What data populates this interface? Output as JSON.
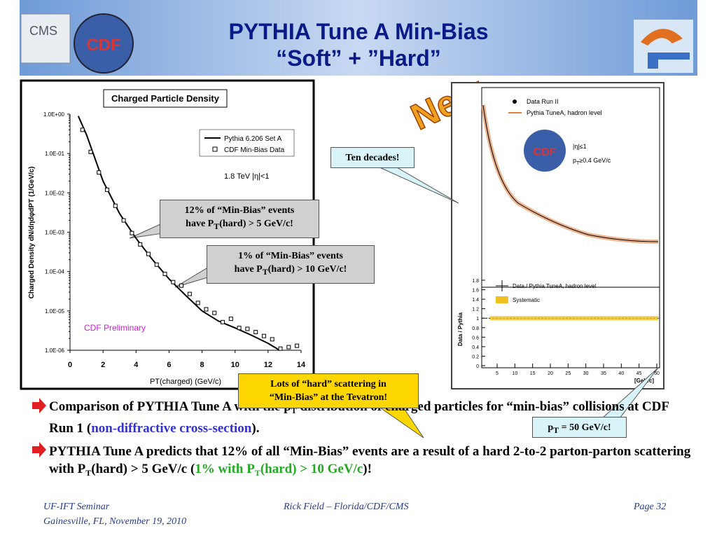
{
  "header": {
    "title_line1": "PYTHIA Tune A Min-Bias",
    "title_line2": "“Soft” + ”Hard”",
    "logo_left": "CMS",
    "logo_cdf": "CDF"
  },
  "new_badge": "New",
  "left_chart": {
    "type": "scatter",
    "title": "Charged Particle Density",
    "xlabel": "PT(charged)  (GeV/c)",
    "ylabel": "Charged Density dN/dηdφdPT (1/GeV/c)",
    "xlim": [
      0,
      14
    ],
    "xticks": [
      0,
      2,
      4,
      6,
      8,
      10,
      12,
      14
    ],
    "ylim": [
      1e-06,
      1
    ],
    "log_y": true,
    "yticks": [
      {
        "value": 1,
        "label": "1.0E+00"
      },
      {
        "value": 0.1,
        "label": "1.0E-01"
      },
      {
        "value": 0.01,
        "label": "1.0E-02"
      },
      {
        "value": 0.001,
        "label": "1.0E-03"
      },
      {
        "value": 0.0001,
        "label": "1.0E-04"
      },
      {
        "value": 1e-05,
        "label": "1.0E-05"
      },
      {
        "value": 1e-06,
        "label": "1.0E-06"
      }
    ],
    "annotations": [
      "1.8 TeV |η|<1",
      "CDF Preliminary"
    ],
    "series": [
      {
        "name": "Pythia 6.206 Set A",
        "color": "#000000",
        "style": "line",
        "x": [
          0.5,
          1,
          2,
          3,
          4,
          5,
          6,
          7,
          8,
          9,
          10,
          11,
          12,
          12.7
        ],
        "values": [
          0.9,
          0.3,
          0.02,
          0.003,
          0.0007,
          0.0002,
          6.5e-05,
          2.5e-05,
          1e-05,
          5.5e-06,
          3.7e-06,
          2.4e-06,
          1.5e-06,
          1e-06
        ]
      },
      {
        "name": "CDF Min-Bias Data",
        "color": "#000000",
        "style": "square",
        "x": [
          0.75,
          1.25,
          1.75,
          2.25,
          2.75,
          3.25,
          3.75,
          4.25,
          4.75,
          5.25,
          5.75,
          6.25,
          6.75,
          7.25,
          7.75,
          8.25,
          8.75,
          9.25,
          9.75,
          10.25,
          10.75,
          11.25,
          11.75,
          12.25,
          12.75,
          13.25,
          13.75
        ],
        "values": [
          0.4,
          0.11,
          0.033,
          0.012,
          0.0047,
          0.002,
          0.00095,
          0.00049,
          0.00028,
          0.00015,
          8.7e-05,
          5.4e-05,
          4.4e-05,
          2.7e-05,
          1.6e-05,
          1.1e-05,
          8.9e-06,
          5.2e-06,
          6.3e-06,
          3.7e-06,
          3.5e-06,
          2.9e-06,
          2.3e-06,
          1.9e-06,
          1.1e-06,
          1.2e-06,
          1.3e-06
        ]
      }
    ]
  },
  "right_chart": {
    "legend": [
      "Data Run II",
      "Pythia TuneA, hadron level"
    ],
    "cuts": [
      "|η|≤1",
      "p",
      "T",
      "≥0.4 GeV/c"
    ],
    "lower_legend": [
      "Data / Pythia TuneA, hadron level",
      "Systematic"
    ],
    "lower_ylabel": "Data / Pythia",
    "lower_yticks": [
      0,
      0.2,
      0.4,
      0.6,
      0.8,
      1,
      1.2,
      1.4,
      1.6,
      1.8
    ],
    "xticks": [
      5,
      10,
      15,
      20,
      25,
      30,
      35,
      40,
      45,
      50
    ],
    "xlabel": "[GeV/c]"
  },
  "callouts": {
    "ten_decades": "Ten decades!",
    "twelve": [
      "12% of “Min-Bias” events",
      "have P",
      "T",
      "(hard) > 5 GeV/c!"
    ],
    "one": [
      "1% of “Min-Bias” events",
      "have P",
      "T",
      "(hard) > 10 GeV/c!"
    ],
    "lots": [
      "Lots of “hard” scattering in",
      "“Min-Bias” at the Tevatron!"
    ],
    "pt50": [
      "p",
      "T",
      " = 50 GeV/c!"
    ]
  },
  "bullets": [
    [
      {
        "text": "Comparison of PYTHIA Tune A with the p",
        "style": ""
      },
      {
        "text": "T",
        "style": "sub"
      },
      {
        "text": " distribution of charged particles for “min-bias” collisions at CDF Run 1 (",
        "style": ""
      },
      {
        "text": "non-diffractive cross-section",
        "style": "blue"
      },
      {
        "text": ").",
        "style": ""
      }
    ],
    [
      {
        "text": "PYTHIA Tune A predicts that 12% of all “Min-Bias” events are a result of a hard 2-to-2 parton-parton scattering with P",
        "style": ""
      },
      {
        "text": "T",
        "style": "sub"
      },
      {
        "text": "(hard) > 5 GeV/c (",
        "style": ""
      },
      {
        "text": "1% with P",
        "style": "green"
      },
      {
        "text": "T",
        "style": "green-sub"
      },
      {
        "text": "(hard) > 10 GeV/c",
        "style": "green"
      },
      {
        "text": ")!",
        "style": ""
      }
    ]
  ],
  "footer": {
    "left1": "UF-IFT Seminar",
    "left2": "Gainesville, FL,  November 19, 2010",
    "center": "Rick Field – Florida/CDF/CMS",
    "right": "Page 32"
  }
}
